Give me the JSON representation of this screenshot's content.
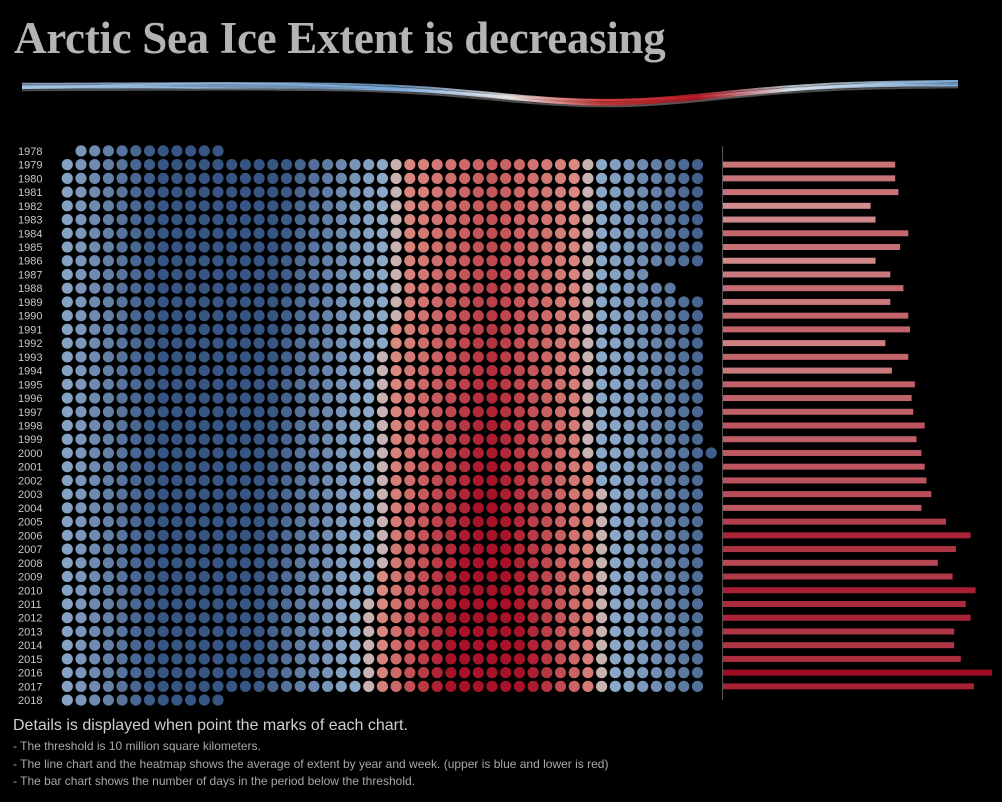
{
  "title": "Arctic Sea Ice Extent is decreasing",
  "notes": {
    "heading": "Details is displayed when point the marks of each chart.",
    "lines": [
      "- The threshold is 10 million square kilometers.",
      "- The line chart and the heatmap shows the average of extent by year and week. (upper is blue and lower is red)",
      "- The bar chart shows the number of days in the period below the threshold."
    ]
  },
  "colors": {
    "background": "#000000",
    "high_extent": "#3a5f8f",
    "threshold": "#c8c8c8",
    "low_extent": "#a8102a"
  },
  "chart_data": [
    {
      "type": "line",
      "description": "Average weekly extent across all years, colored blue above and red below the threshold",
      "threshold_million_km2": 10,
      "x_label": "",
      "y_label": ""
    },
    {
      "type": "heatmap",
      "years": [
        "1978",
        "1979",
        "1980",
        "1981",
        "1982",
        "1983",
        "1984",
        "1985",
        "1986",
        "1987",
        "1988",
        "1989",
        "1990",
        "1991",
        "1992",
        "1993",
        "1994",
        "1995",
        "1996",
        "1997",
        "1998",
        "1999",
        "2000",
        "2001",
        "2002",
        "2003",
        "2004",
        "2005",
        "2006",
        "2007",
        "2008",
        "2009",
        "2010",
        "2011",
        "2012",
        "2013",
        "2014",
        "2015",
        "2016",
        "2017",
        "2018"
      ],
      "weeks_per_year": [
        11,
        47,
        47,
        47,
        47,
        47,
        47,
        47,
        47,
        43,
        45,
        47,
        47,
        47,
        47,
        47,
        47,
        47,
        47,
        47,
        47,
        47,
        48,
        47,
        47,
        47,
        47,
        47,
        47,
        47,
        47,
        47,
        47,
        47,
        47,
        47,
        47,
        47,
        47,
        47,
        12
      ],
      "first_week": [
        1,
        0,
        0,
        0,
        0,
        0,
        0,
        0,
        0,
        0,
        0,
        0,
        0,
        0,
        0,
        0,
        0,
        0,
        0,
        0,
        0,
        0,
        0,
        0,
        0,
        0,
        0,
        0,
        0,
        0,
        0,
        0,
        0,
        0,
        0,
        0,
        0,
        0,
        0,
        0,
        0
      ]
    },
    {
      "type": "bar",
      "description": "Number of days below threshold per year",
      "categories": [
        "1979",
        "1980",
        "1981",
        "1982",
        "1983",
        "1984",
        "1985",
        "1986",
        "1987",
        "1988",
        "1989",
        "1990",
        "1991",
        "1992",
        "1993",
        "1994",
        "1995",
        "1996",
        "1997",
        "1998",
        "1999",
        "2000",
        "2001",
        "2002",
        "2003",
        "2004",
        "2005",
        "2006",
        "2007",
        "2008",
        "2009",
        "2010",
        "2011",
        "2012",
        "2013",
        "2014",
        "2015",
        "2016",
        "2017"
      ],
      "values": [
        105,
        105,
        107,
        90,
        93,
        113,
        108,
        93,
        102,
        110,
        102,
        113,
        114,
        99,
        113,
        103,
        117,
        115,
        116,
        123,
        118,
        121,
        123,
        124,
        127,
        121,
        136,
        151,
        142,
        131,
        140,
        154,
        148,
        151,
        141,
        141,
        145,
        164,
        153
      ]
    }
  ]
}
